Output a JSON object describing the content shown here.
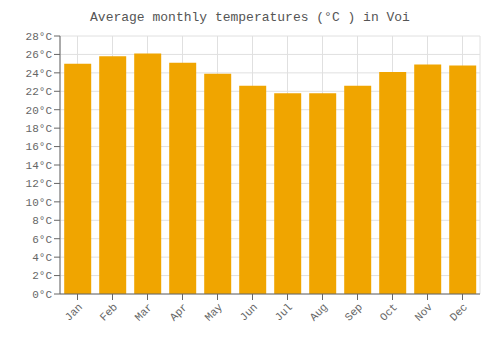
{
  "chart_data": {
    "type": "bar",
    "title": "Average monthly temperatures (°C ) in Voi",
    "categories": [
      "Jan",
      "Feb",
      "Mar",
      "Apr",
      "May",
      "Jun",
      "Jul",
      "Aug",
      "Sep",
      "Oct",
      "Nov",
      "Dec"
    ],
    "values": [
      25.0,
      25.8,
      26.1,
      25.1,
      23.9,
      22.6,
      21.8,
      21.8,
      22.6,
      24.1,
      24.9,
      24.8
    ],
    "color": "#F0A500",
    "ylim": [
      0,
      28
    ],
    "yticks": [
      {
        "value": 0,
        "label": "0°C"
      },
      {
        "value": 2,
        "label": "2°C"
      },
      {
        "value": 4,
        "label": "4°C"
      },
      {
        "value": 6,
        "label": "6°C"
      },
      {
        "value": 8,
        "label": "8°C"
      },
      {
        "value": 10,
        "label": "10°C"
      },
      {
        "value": 12,
        "label": "12°C"
      },
      {
        "value": 14,
        "label": "14°C"
      },
      {
        "value": 16,
        "label": "16°C"
      },
      {
        "value": 18,
        "label": "18°C"
      },
      {
        "value": 20,
        "label": "20°C"
      },
      {
        "value": 22,
        "label": "22°C"
      },
      {
        "value": 24,
        "label": "24°C"
      },
      {
        "value": 26,
        "label": "26°C"
      },
      {
        "value": 28,
        "label": "28°C"
      }
    ],
    "grid": true
  }
}
